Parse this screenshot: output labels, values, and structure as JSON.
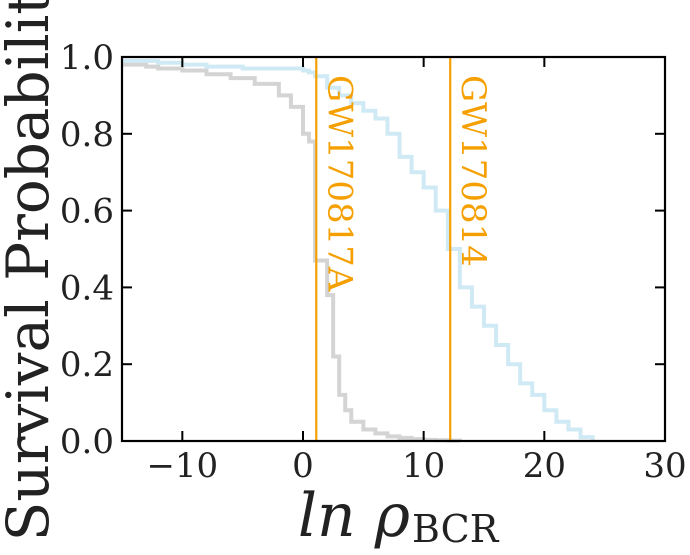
{
  "chart_data": {
    "type": "line",
    "xlabel": "ln ρ",
    "xlabel_sub": "BCR",
    "ylabel": "Survival Probability",
    "xlim": [
      -15,
      30
    ],
    "ylim": [
      0.0,
      1.0
    ],
    "x_ticks": [
      -10,
      0,
      10,
      20,
      30
    ],
    "x_tick_labels": [
      "−10",
      "0",
      "10",
      "20",
      "30"
    ],
    "y_ticks": [
      0.0,
      0.2,
      0.4,
      0.6,
      0.8,
      1.0
    ],
    "y_tick_labels": [
      "0.0",
      "0.2",
      "0.4",
      "0.6",
      "0.8",
      "1.0"
    ],
    "grid": false,
    "series": [
      {
        "color": "#d4d4d4",
        "drawstyle": "steps-post",
        "x": [
          -15,
          -13,
          -12,
          -10,
          -8,
          -6,
          -4,
          -2,
          -1,
          0,
          0.5,
          1,
          2,
          2.5,
          3,
          3.5,
          4,
          5,
          6,
          7,
          8,
          9,
          10,
          11,
          12,
          13
        ],
        "y": [
          0.98,
          0.975,
          0.97,
          0.965,
          0.955,
          0.945,
          0.93,
          0.9,
          0.87,
          0.8,
          0.78,
          0.47,
          0.38,
          0.22,
          0.12,
          0.08,
          0.05,
          0.03,
          0.02,
          0.012,
          0.008,
          0.005,
          0.003,
          0.002,
          0.001,
          0.0
        ]
      },
      {
        "color": "#cfeaf4",
        "drawstyle": "steps-post",
        "x": [
          -15,
          -12,
          -10,
          -8,
          -5,
          0,
          0.5,
          1,
          2,
          3,
          4,
          5,
          6,
          7,
          8,
          9,
          10,
          11,
          12,
          13,
          14,
          15,
          16,
          17,
          18,
          19,
          20,
          21,
          22,
          23,
          24
        ],
        "y": [
          0.99,
          0.985,
          0.98,
          0.975,
          0.97,
          0.965,
          0.96,
          0.95,
          0.92,
          0.9,
          0.88,
          0.86,
          0.84,
          0.8,
          0.74,
          0.7,
          0.66,
          0.6,
          0.5,
          0.4,
          0.35,
          0.3,
          0.25,
          0.2,
          0.15,
          0.12,
          0.08,
          0.05,
          0.03,
          0.01,
          0.0
        ]
      }
    ],
    "vlines": [
      {
        "x": 1.1,
        "label": "GW170817A",
        "color": "#f5a000"
      },
      {
        "x": 12.2,
        "label": "GW170814",
        "color": "#f5a000"
      }
    ]
  }
}
